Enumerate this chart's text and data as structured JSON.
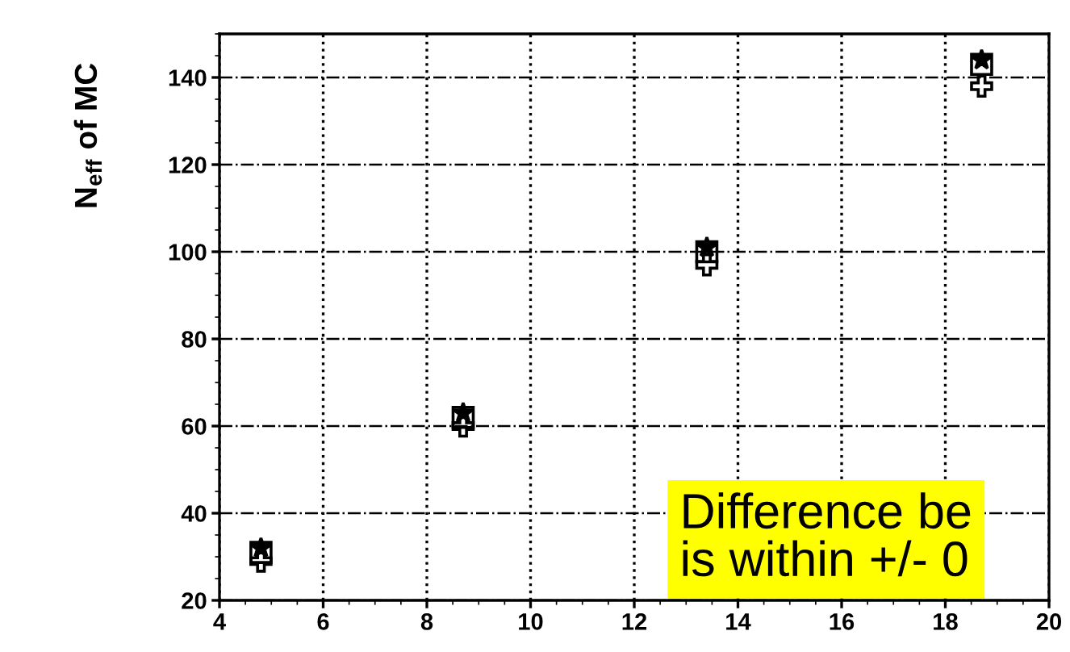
{
  "chart_data": {
    "type": "scatter",
    "ylabel": "N$_{eff}$ of MC",
    "x": [
      4.8,
      8.7,
      13.4,
      18.7
    ],
    "series": [
      {
        "color": "#000000",
        "marker": "star",
        "values": [
          32,
          63,
          101,
          144
        ]
      },
      {
        "color": "#000000",
        "marker": "square",
        "values": [
          31,
          62,
          100,
          143
        ]
      },
      {
        "color": "#000000",
        "marker": "cross",
        "values": [
          29,
          60,
          97,
          138
        ]
      }
    ],
    "xlim": [
      4,
      20
    ],
    "xticks": [
      4,
      6,
      8,
      10,
      12,
      14,
      16,
      18,
      20
    ],
    "ylim": [
      20,
      150
    ],
    "yticks": [
      20,
      40,
      60,
      80,
      100,
      120,
      140
    ],
    "grid": true,
    "annotations": [
      "Difference be\nis within +/- 0"
    ]
  }
}
